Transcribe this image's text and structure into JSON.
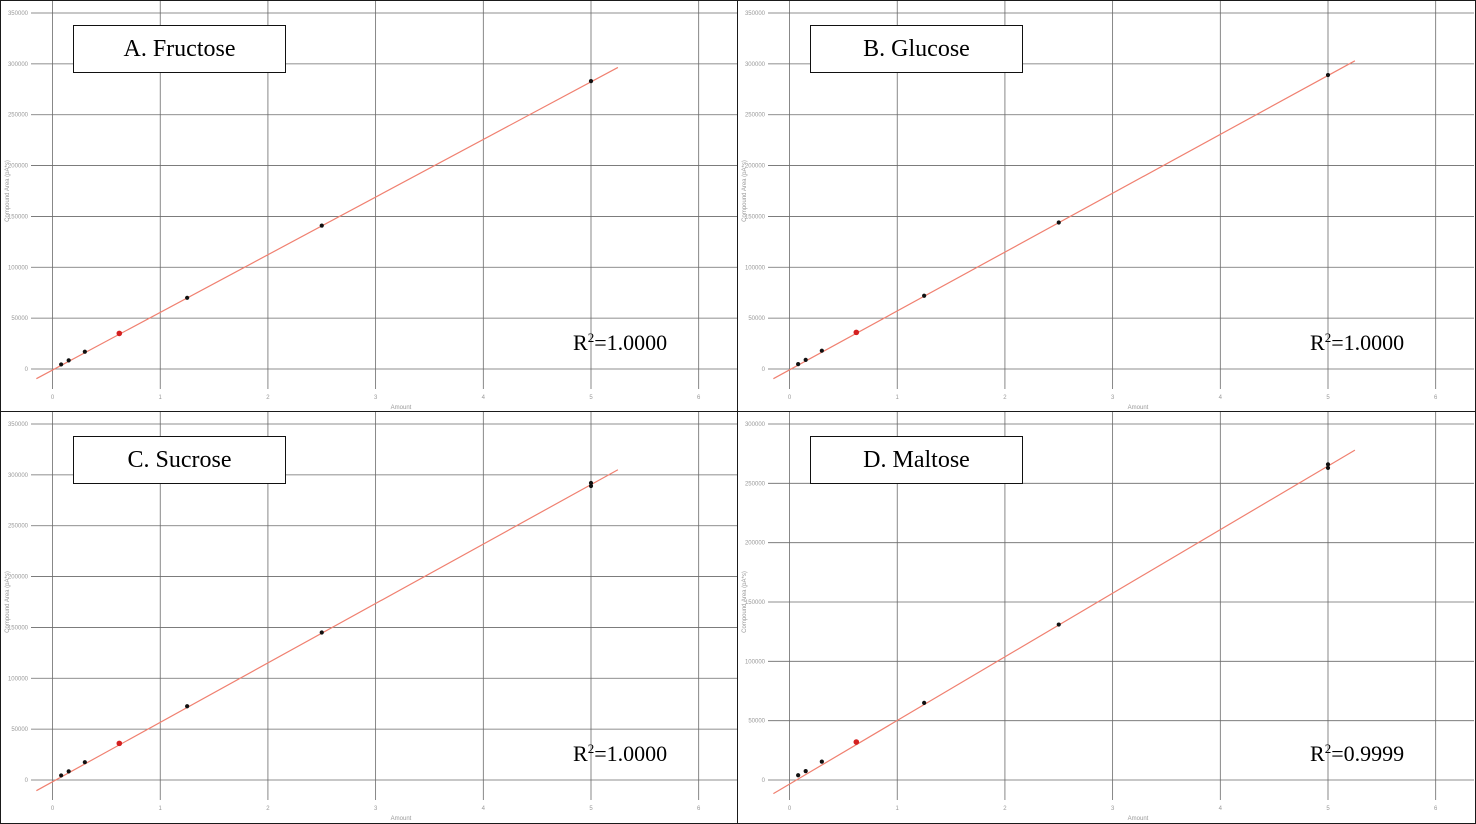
{
  "chart_data": [
    {
      "type": "scatter",
      "title": "A. Fructose",
      "xlabel": "Amount",
      "ylabel": "Compound Area (pA*s)",
      "xlim": [
        -0.2,
        6.3
      ],
      "ylim": [
        0,
        350000
      ],
      "xticks": [
        0,
        1,
        2,
        3,
        4,
        5,
        6
      ],
      "yticks": [
        0,
        50000,
        100000,
        150000,
        200000,
        250000,
        300000,
        350000
      ],
      "points": {
        "x": [
          0.08,
          0.15,
          0.3,
          0.62,
          1.25,
          2.5,
          5.0
        ],
        "y": [
          4500,
          8500,
          17000,
          35000,
          70000,
          141000,
          283000
        ]
      },
      "highlight_index": 3,
      "fit": {
        "x": [
          -0.15,
          5.25
        ],
        "y": [
          -9500,
          296500
        ]
      },
      "annotation": {
        "r2_prefix": "R",
        "r2_sup": "2",
        "r2_value": "=1.0000"
      },
      "grid": true
    },
    {
      "type": "scatter",
      "title": "B. Glucose",
      "xlabel": "Amount",
      "ylabel": "Compound Area (pA*s)",
      "xlim": [
        -0.2,
        6.3
      ],
      "ylim": [
        0,
        350000
      ],
      "xticks": [
        0,
        1,
        2,
        3,
        4,
        5,
        6
      ],
      "yticks": [
        0,
        50000,
        100000,
        150000,
        200000,
        250000,
        300000,
        350000
      ],
      "points": {
        "x": [
          0.08,
          0.15,
          0.3,
          0.62,
          1.25,
          2.5,
          5.0
        ],
        "y": [
          4800,
          9000,
          18000,
          36000,
          72000,
          144000,
          289000
        ]
      },
      "highlight_index": 3,
      "fit": {
        "x": [
          -0.15,
          5.25
        ],
        "y": [
          -9500,
          303000
        ]
      },
      "annotation": {
        "r2_prefix": "R",
        "r2_sup": "2",
        "r2_value": "=1.0000"
      },
      "grid": true
    },
    {
      "type": "scatter",
      "title": "C. Sucrose",
      "xlabel": "Amount",
      "ylabel": "Compound Area (pA*s)",
      "xlim": [
        -0.2,
        6.3
      ],
      "ylim": [
        0,
        350000
      ],
      "xticks": [
        0,
        1,
        2,
        3,
        4,
        5,
        6
      ],
      "yticks": [
        0,
        50000,
        100000,
        150000,
        200000,
        250000,
        300000,
        350000
      ],
      "points": {
        "x": [
          0.08,
          0.15,
          0.3,
          0.62,
          1.25,
          2.5,
          5.0,
          5.0
        ],
        "y": [
          4500,
          8500,
          17500,
          36000,
          72500,
          145000,
          289000,
          292000
        ]
      },
      "highlight_index": 3,
      "fit": {
        "x": [
          -0.15,
          5.25
        ],
        "y": [
          -10500,
          305000
        ]
      },
      "annotation": {
        "r2_prefix": "R",
        "r2_sup": "2",
        "r2_value": "=1.0000"
      },
      "grid": true
    },
    {
      "type": "scatter",
      "title": "D. Maltose",
      "xlabel": "Amount",
      "ylabel": "Compound Area (pA*s)",
      "xlim": [
        -0.2,
        6.3
      ],
      "ylim": [
        0,
        300000
      ],
      "xticks": [
        0,
        1,
        2,
        3,
        4,
        5,
        6
      ],
      "yticks": [
        0,
        50000,
        100000,
        150000,
        200000,
        250000,
        300000
      ],
      "points": {
        "x": [
          0.08,
          0.15,
          0.3,
          0.62,
          1.25,
          2.5,
          5.0,
          5.0
        ],
        "y": [
          4000,
          7500,
          15500,
          32000,
          65000,
          131000,
          263000,
          266000
        ]
      },
      "highlight_index": 3,
      "fit": {
        "x": [
          -0.15,
          5.25
        ],
        "y": [
          -11500,
          278000
        ]
      },
      "annotation": {
        "r2_prefix": "R",
        "r2_sup": "2",
        "r2_value": "=0.9999"
      },
      "grid": true
    }
  ],
  "colors": {
    "fit_line": "#f08070",
    "point": "#111111",
    "highlight_point": "#d42020",
    "grid": "#6a6a6a",
    "tick": "#999999"
  }
}
